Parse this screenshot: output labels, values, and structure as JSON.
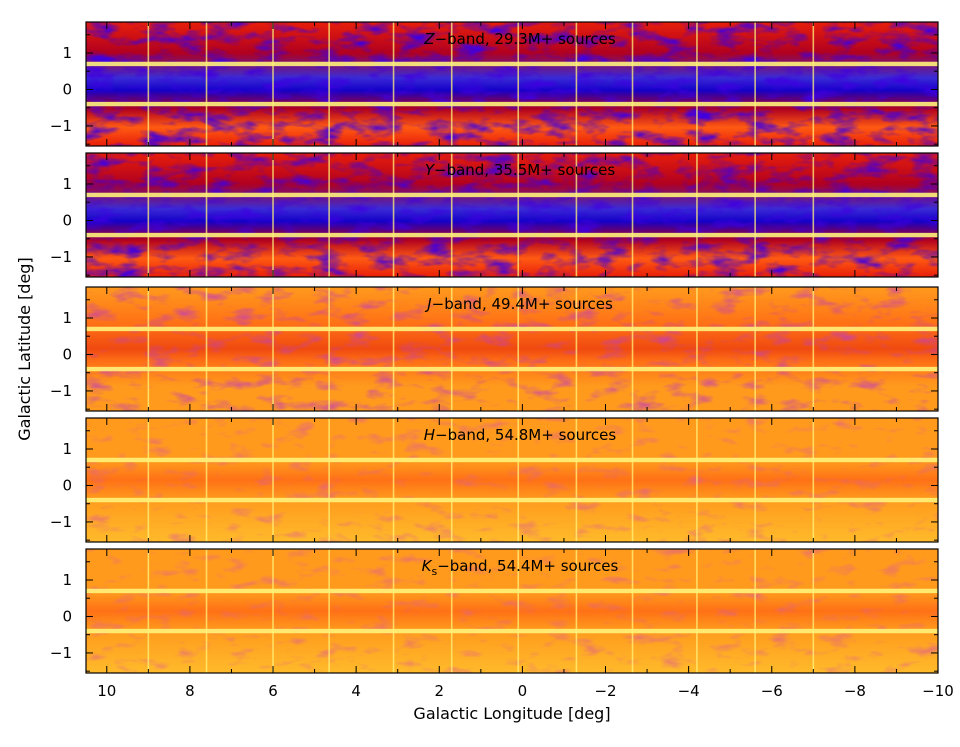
{
  "chart_data": {
    "type": "heatmap",
    "title": "",
    "xlabel": "Galactic Longitude [deg]",
    "ylabel": "Galactic Latitude [deg]",
    "xlim": [
      10.5,
      -10
    ],
    "ylim": [
      -1.55,
      1.85
    ],
    "x_ticks": [
      10,
      8,
      6,
      4,
      2,
      0,
      -2,
      -4,
      -6,
      -8,
      -10
    ],
    "x_tick_labels": [
      "10",
      "8",
      "6",
      "4",
      "2",
      "0",
      "−2",
      "−4",
      "−6",
      "−8",
      "−10"
    ],
    "y_ticks": [
      1,
      0,
      -1
    ],
    "y_tick_labels": [
      "1",
      "0",
      "−1"
    ],
    "tile_boundaries_l": [
      9,
      7.6,
      6,
      4.65,
      3.1,
      1.7,
      0.1,
      -1.3,
      -2.65,
      -4.2,
      -5.6,
      -7
    ],
    "tile_boundaries_b": [
      0.7,
      -0.4
    ],
    "panels": [
      {
        "band": "Z",
        "sub": "",
        "label_suffix": "−band, 29.3M+ sources",
        "sources": "29.3M+",
        "intensity": 0.88
      },
      {
        "band": "Y",
        "sub": "",
        "label_suffix": "−band, 35.5M+ sources",
        "sources": "35.5M+",
        "intensity": 0.72
      },
      {
        "band": "J",
        "sub": "",
        "label_suffix": "−band, 49.4M+ sources",
        "sources": "49.4M+",
        "intensity": 0.42
      },
      {
        "band": "H",
        "sub": "",
        "label_suffix": "−band, 54.8M+ sources",
        "sources": "54.8M+",
        "intensity": 0.24
      },
      {
        "band": "K",
        "sub": "s",
        "label_suffix": "−band, 54.4M+ sources",
        "sources": "54.4M+",
        "intensity": 0.17
      }
    ],
    "colormap": [
      "#1400c8",
      "#3a2bd6",
      "#b00020",
      "#e81e0a",
      "#ff5a12",
      "#ff9a1e",
      "#ffcc33",
      "#fff07a"
    ],
    "gap_color": "#fff37a"
  }
}
